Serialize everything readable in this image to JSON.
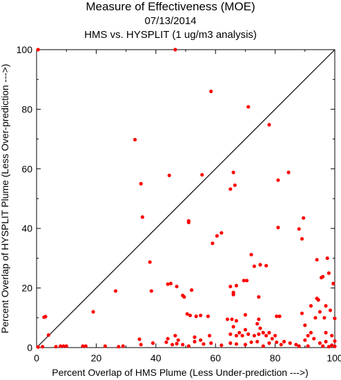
{
  "header": {
    "title": "Measure of Effectiveness (MOE)",
    "date": "07/13/2014",
    "subtitle": "HMS vs. HYSPLIT  (1 ug/m3 analysis)"
  },
  "colors": {
    "points": "#ff0000",
    "axes": "#000000",
    "diagonal": "#000000"
  },
  "chart_data": {
    "type": "scatter",
    "title": "Measure of Effectiveness (MOE)",
    "xlabel": "Percent Overlap of HMS Plume (Less Under-prediction --->)",
    "ylabel": "Percent Overlap of HYSPLIT Plume (Less Over-prediction --->)",
    "xlim": [
      0,
      100
    ],
    "ylim": [
      0,
      100
    ],
    "xticks": [
      "0",
      "20",
      "40",
      "60",
      "80",
      "100"
    ],
    "yticks": [
      "0",
      "20",
      "40",
      "60",
      "80",
      "100"
    ],
    "grid": false,
    "reference_line": "y = x",
    "points": [
      [
        0.5,
        100
      ],
      [
        46.5,
        100
      ],
      [
        58.5,
        86
      ],
      [
        71,
        80.8
      ],
      [
        78,
        74.8
      ],
      [
        33,
        69.8
      ],
      [
        84.5,
        58.8
      ],
      [
        66,
        58.8
      ],
      [
        81,
        56.2
      ],
      [
        44.5,
        57.8
      ],
      [
        55.5,
        58
      ],
      [
        35,
        55
      ],
      [
        65,
        53.2
      ],
      [
        66.5,
        54.5
      ],
      [
        35.5,
        43.8
      ],
      [
        51,
        42.5
      ],
      [
        51,
        42
      ],
      [
        62,
        38.5
      ],
      [
        60.5,
        37.5
      ],
      [
        59,
        35
      ],
      [
        81,
        40.3
      ],
      [
        88,
        39.8
      ],
      [
        89.5,
        43.5
      ],
      [
        89,
        36.5
      ],
      [
        38,
        28.7
      ],
      [
        72,
        31.2
      ],
      [
        73,
        27.3
      ],
      [
        75,
        27.8
      ],
      [
        77,
        27.5
      ],
      [
        94,
        29.5
      ],
      [
        97.5,
        30
      ],
      [
        98,
        25
      ],
      [
        96,
        23.8
      ],
      [
        95.5,
        23.5
      ],
      [
        44,
        21.3
      ],
      [
        45,
        21.5
      ],
      [
        47,
        20.5
      ],
      [
        52,
        19.3
      ],
      [
        65,
        20.5
      ],
      [
        67,
        20.8
      ],
      [
        69.5,
        22.5
      ],
      [
        70.5,
        22.5
      ],
      [
        38.5,
        19
      ],
      [
        26.5,
        19
      ],
      [
        19,
        12
      ],
      [
        49,
        17.5
      ],
      [
        49.5,
        17
      ],
      [
        66,
        18.5
      ],
      [
        66,
        17.8
      ],
      [
        74.5,
        17
      ],
      [
        99.5,
        21.5
      ],
      [
        94,
        16.5
      ],
      [
        94.5,
        16
      ],
      [
        92,
        14
      ],
      [
        97,
        14
      ],
      [
        98.5,
        12.5
      ],
      [
        100,
        9.8
      ],
      [
        2.5,
        10.2
      ],
      [
        3,
        10.4
      ],
      [
        50.5,
        11.3
      ],
      [
        51.5,
        10.8
      ],
      [
        53.5,
        10.5
      ],
      [
        55,
        10.8
      ],
      [
        57.5,
        10.5
      ],
      [
        64,
        9.5
      ],
      [
        65.5,
        9.5
      ],
      [
        67,
        9
      ],
      [
        70,
        11
      ],
      [
        74.5,
        9.5
      ],
      [
        80.5,
        10.5
      ],
      [
        81.5,
        10.5
      ],
      [
        89,
        11.5
      ],
      [
        90,
        7.5
      ],
      [
        93.5,
        10
      ],
      [
        95,
        12
      ],
      [
        96.5,
        10
      ],
      [
        91,
        4
      ],
      [
        92,
        5
      ],
      [
        97,
        5
      ],
      [
        99,
        4
      ],
      [
        4,
        4.2
      ],
      [
        44,
        3
      ],
      [
        46.5,
        4
      ],
      [
        47.5,
        2.5
      ],
      [
        53,
        3.5
      ],
      [
        55,
        2.5
      ],
      [
        58,
        4
      ],
      [
        65,
        4.5
      ],
      [
        67,
        4
      ],
      [
        69,
        4
      ],
      [
        70,
        6
      ],
      [
        71,
        4.5
      ],
      [
        73,
        4
      ],
      [
        74.5,
        4.5
      ],
      [
        76,
        5
      ],
      [
        77,
        4
      ],
      [
        78,
        5
      ],
      [
        79,
        3
      ],
      [
        80,
        4
      ],
      [
        66,
        7
      ],
      [
        68,
        5
      ],
      [
        74,
        8
      ],
      [
        75,
        6.5
      ],
      [
        34.5,
        2.8
      ],
      [
        39,
        1.5
      ],
      [
        43.5,
        1.8
      ],
      [
        45.5,
        1
      ],
      [
        47,
        1.3
      ],
      [
        49,
        1
      ],
      [
        51,
        0.5
      ],
      [
        53,
        2
      ],
      [
        56,
        1.2
      ],
      [
        58.5,
        1.5
      ],
      [
        62,
        0.8
      ],
      [
        65,
        1.5
      ],
      [
        67,
        1.2
      ],
      [
        70,
        1
      ],
      [
        72,
        1.8
      ],
      [
        74,
        2
      ],
      [
        76,
        0.5
      ],
      [
        78,
        1.5
      ],
      [
        80.5,
        1.8
      ],
      [
        83,
        2
      ],
      [
        85,
        1.5
      ],
      [
        87,
        1
      ],
      [
        90,
        2.5
      ],
      [
        93,
        3
      ],
      [
        95,
        1.5
      ],
      [
        97,
        2
      ],
      [
        99,
        0.8
      ],
      [
        35,
        1
      ],
      [
        8,
        0.5
      ],
      [
        9,
        0.5
      ],
      [
        10,
        0.5
      ],
      [
        15.5,
        0.5
      ],
      [
        16.5,
        0.5
      ],
      [
        23,
        0.5
      ],
      [
        27.5,
        0.3
      ],
      [
        29,
        0.5
      ],
      [
        0.5,
        0.2
      ],
      [
        2,
        0.3
      ],
      [
        6.5,
        0.3
      ],
      [
        82,
        1
      ],
      [
        88,
        0.5
      ],
      [
        91,
        0.5
      ],
      [
        96,
        0.5
      ],
      [
        98,
        0.3
      ],
      [
        100,
        0.4
      ],
      [
        100,
        2.2
      ]
    ]
  }
}
